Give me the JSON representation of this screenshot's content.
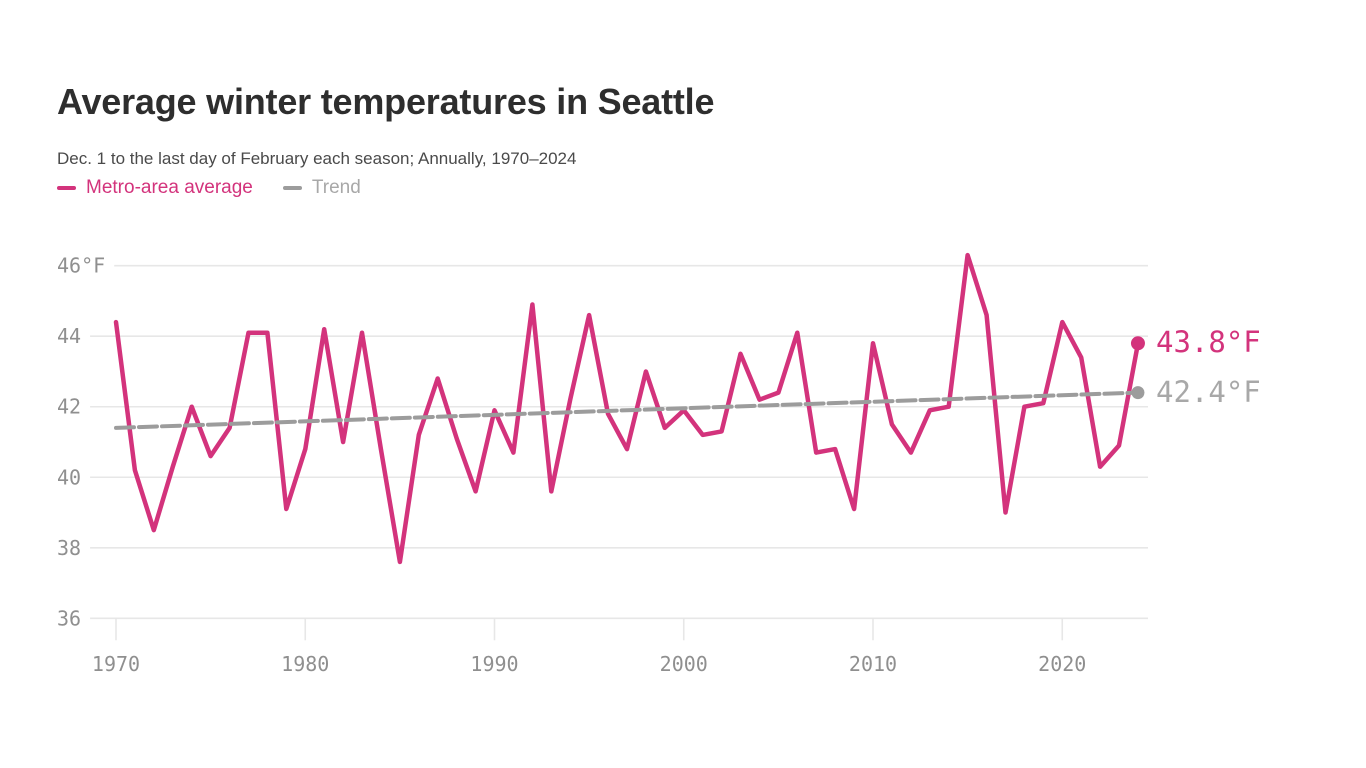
{
  "header": {
    "title": "Average winter temperatures in Seattle",
    "subtitle": "Dec. 1 to the last day of February each season; Annually, 1970–2024"
  },
  "legend": [
    {
      "label": "Metro-area average",
      "color": "#d3337c"
    },
    {
      "label": "Trend",
      "color": "#9c9c9c",
      "text_color": "#a8a8a8"
    }
  ],
  "end_labels": {
    "average": "43.8°F",
    "trend": "42.4°F"
  },
  "chart_data": {
    "type": "line",
    "title": "Average winter temperatures in Seattle",
    "subtitle": "Dec. 1 to the last day of February each season; Annually, 1970–2024",
    "unit": "°F",
    "xlim": [
      1970,
      2024
    ],
    "ylim": [
      36,
      46.6
    ],
    "grid": true,
    "legend_position": "top",
    "x_ticks": [
      1970,
      1980,
      1990,
      2000,
      2010,
      2020
    ],
    "y_ticks": [
      {
        "value": 46,
        "label": "46°F"
      },
      {
        "value": 44,
        "label": "44"
      },
      {
        "value": 42,
        "label": "42"
      },
      {
        "value": 40,
        "label": "40"
      },
      {
        "value": 38,
        "label": "38"
      },
      {
        "value": 36,
        "label": "36"
      }
    ],
    "series": [
      {
        "name": "Metro-area average",
        "color": "#d3337c",
        "style": "solid",
        "x_start": 1970,
        "x_step": 1,
        "end_label": "43.8°F",
        "values": [
          44.4,
          40.2,
          38.5,
          40.3,
          42.0,
          40.6,
          41.4,
          44.1,
          44.1,
          39.1,
          40.8,
          44.2,
          41.0,
          44.1,
          40.8,
          37.6,
          41.2,
          42.8,
          41.1,
          39.6,
          41.9,
          40.7,
          44.9,
          39.6,
          42.2,
          44.6,
          41.8,
          40.8,
          43.0,
          41.4,
          41.9,
          41.2,
          41.3,
          43.5,
          42.2,
          42.4,
          44.1,
          40.7,
          40.8,
          39.1,
          43.8,
          41.5,
          40.7,
          41.9,
          42.0,
          46.3,
          44.6,
          39.0,
          42.0,
          42.1,
          44.4,
          43.4,
          40.3,
          40.9,
          43.8
        ]
      },
      {
        "name": "Trend",
        "color": "#9c9c9c",
        "style": "dashed",
        "x": [
          1970,
          2024
        ],
        "end_label": "42.4°F",
        "values": [
          41.4,
          42.4
        ]
      }
    ],
    "colors": {
      "accent_pink": "#d3337c",
      "trend_gray": "#9c9c9c",
      "trend_text_gray": "#a8a8a8",
      "gridline": "#e7e7e7",
      "axis_text": "#8f8f8f"
    }
  }
}
